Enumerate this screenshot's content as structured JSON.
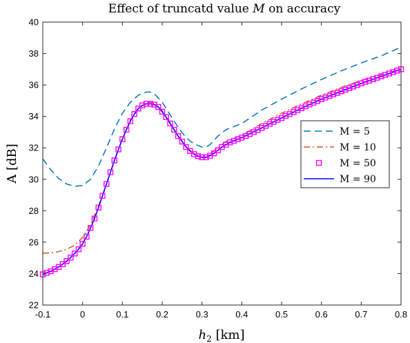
{
  "chart_data": {
    "type": "line",
    "title_prefix": "Effect of truncatd value ",
    "title_symbol": "M",
    "title_suffix": " on accuracy",
    "xlabel_symbol": "h",
    "xlabel_sub": "2",
    "xlabel_unit": " [km]",
    "ylabel": "A [dB]",
    "xlim": [
      -0.1,
      0.8
    ],
    "ylim": [
      22,
      40
    ],
    "xticks": [
      -0.1,
      0,
      0.1,
      0.2,
      0.3,
      0.4,
      0.5,
      0.6,
      0.7,
      0.8
    ],
    "xtick_labels": [
      "-0.1",
      "0",
      "0.1",
      "0.2",
      "0.3",
      "0.4",
      "0.5",
      "0.6",
      "0.7",
      "0.8"
    ],
    "yticks": [
      22,
      24,
      26,
      28,
      30,
      32,
      34,
      36,
      38,
      40
    ],
    "ytick_labels": [
      "22",
      "24",
      "26",
      "28",
      "30",
      "32",
      "34",
      "36",
      "38",
      "40"
    ],
    "grid": false,
    "legend_position": "right",
    "series": [
      {
        "name": "M = 5",
        "style": "dashed",
        "color": "#0072BD",
        "x": [
          -0.1,
          -0.08,
          -0.06,
          -0.04,
          -0.02,
          0.0,
          0.02,
          0.04,
          0.06,
          0.08,
          0.1,
          0.12,
          0.14,
          0.16,
          0.17,
          0.18,
          0.2,
          0.22,
          0.24,
          0.26,
          0.28,
          0.3,
          0.31,
          0.32,
          0.34,
          0.36,
          0.38,
          0.4,
          0.45,
          0.5,
          0.55,
          0.6,
          0.65,
          0.7,
          0.75,
          0.8
        ],
        "y": [
          31.3,
          30.6,
          30.05,
          29.7,
          29.55,
          29.6,
          30.0,
          30.85,
          32.0,
          33.2,
          34.2,
          34.9,
          35.35,
          35.55,
          35.55,
          35.45,
          34.9,
          34.1,
          33.3,
          32.65,
          32.25,
          32.05,
          32.05,
          32.2,
          32.75,
          33.15,
          33.35,
          33.55,
          34.4,
          35.1,
          35.75,
          36.35,
          36.9,
          37.4,
          37.85,
          38.4
        ]
      },
      {
        "name": "M = 10",
        "style": "dash-dot",
        "color": "#D95319",
        "x": [
          -0.1,
          -0.08,
          -0.06,
          -0.04,
          -0.02,
          0.0,
          0.02,
          0.04,
          0.06,
          0.08,
          0.1,
          0.12,
          0.14,
          0.16,
          0.17,
          0.18,
          0.2,
          0.22,
          0.24,
          0.26,
          0.28,
          0.3,
          0.31,
          0.32,
          0.34,
          0.36,
          0.38,
          0.4,
          0.45,
          0.5,
          0.55,
          0.6,
          0.65,
          0.7,
          0.75,
          0.8
        ],
        "y": [
          25.3,
          25.32,
          25.4,
          25.55,
          25.8,
          26.3,
          27.1,
          28.3,
          29.7,
          31.2,
          32.6,
          33.75,
          34.5,
          34.85,
          34.9,
          34.85,
          34.35,
          33.6,
          32.75,
          32.05,
          31.6,
          31.4,
          31.4,
          31.55,
          32.05,
          32.4,
          32.6,
          32.8,
          33.55,
          34.2,
          34.8,
          35.35,
          35.85,
          36.3,
          36.65,
          37.0
        ]
      },
      {
        "name": "M = 50",
        "style": "square-markers",
        "color": "#FF00FF",
        "x": [
          -0.1,
          -0.09,
          -0.08,
          -0.07,
          -0.06,
          -0.05,
          -0.04,
          -0.03,
          -0.02,
          -0.01,
          0.0,
          0.01,
          0.02,
          0.03,
          0.04,
          0.05,
          0.06,
          0.07,
          0.08,
          0.09,
          0.1,
          0.11,
          0.12,
          0.13,
          0.14,
          0.15,
          0.16,
          0.17,
          0.18,
          0.19,
          0.2,
          0.21,
          0.22,
          0.23,
          0.24,
          0.25,
          0.26,
          0.27,
          0.28,
          0.29,
          0.3,
          0.31,
          0.32,
          0.33,
          0.34,
          0.35,
          0.36,
          0.37,
          0.38,
          0.39,
          0.4,
          0.41,
          0.42,
          0.43,
          0.44,
          0.45,
          0.46,
          0.47,
          0.48,
          0.49,
          0.5,
          0.51,
          0.52,
          0.53,
          0.54,
          0.55,
          0.56,
          0.57,
          0.58,
          0.59,
          0.6,
          0.61,
          0.62,
          0.63,
          0.64,
          0.65,
          0.66,
          0.67,
          0.68,
          0.69,
          0.7,
          0.71,
          0.72,
          0.73,
          0.74,
          0.75,
          0.76,
          0.77,
          0.78,
          0.79,
          0.8
        ],
        "y": [
          23.95,
          24.05,
          24.15,
          24.28,
          24.42,
          24.6,
          24.8,
          25.02,
          25.28,
          25.55,
          25.9,
          26.35,
          26.9,
          27.5,
          28.2,
          28.95,
          29.7,
          30.45,
          31.2,
          31.9,
          32.55,
          33.15,
          33.7,
          34.15,
          34.5,
          34.7,
          34.8,
          34.8,
          34.75,
          34.6,
          34.3,
          33.95,
          33.55,
          33.15,
          32.75,
          32.4,
          32.05,
          31.8,
          31.6,
          31.47,
          31.4,
          31.4,
          31.5,
          31.65,
          31.85,
          32.05,
          32.2,
          32.35,
          32.45,
          32.55,
          32.65,
          32.75,
          32.88,
          33.0,
          33.13,
          33.27,
          33.4,
          33.53,
          33.66,
          33.78,
          33.9,
          34.03,
          34.15,
          34.28,
          34.4,
          34.52,
          34.64,
          34.76,
          34.87,
          34.98,
          35.1,
          35.2,
          35.3,
          35.4,
          35.5,
          35.6,
          35.7,
          35.8,
          35.9,
          36.0,
          36.1,
          36.2,
          36.28,
          36.37,
          36.46,
          36.55,
          36.64,
          36.73,
          36.82,
          36.91,
          37.0
        ]
      },
      {
        "name": "M = 90",
        "style": "solid",
        "color": "#0000FF",
        "x": [
          -0.1,
          -0.09,
          -0.08,
          -0.07,
          -0.06,
          -0.05,
          -0.04,
          -0.03,
          -0.02,
          -0.01,
          0.0,
          0.01,
          0.02,
          0.03,
          0.04,
          0.05,
          0.06,
          0.07,
          0.08,
          0.09,
          0.1,
          0.11,
          0.12,
          0.13,
          0.14,
          0.15,
          0.16,
          0.17,
          0.18,
          0.19,
          0.2,
          0.21,
          0.22,
          0.23,
          0.24,
          0.25,
          0.26,
          0.27,
          0.28,
          0.29,
          0.3,
          0.31,
          0.32,
          0.33,
          0.34,
          0.35,
          0.36,
          0.37,
          0.38,
          0.39,
          0.4,
          0.45,
          0.5,
          0.55,
          0.6,
          0.65,
          0.7,
          0.75,
          0.8
        ],
        "y": [
          23.95,
          24.05,
          24.15,
          24.28,
          24.42,
          24.6,
          24.8,
          25.02,
          25.28,
          25.55,
          25.9,
          26.35,
          26.9,
          27.5,
          28.2,
          28.95,
          29.7,
          30.45,
          31.2,
          31.9,
          32.55,
          33.15,
          33.7,
          34.15,
          34.5,
          34.7,
          34.8,
          34.8,
          34.75,
          34.6,
          34.3,
          33.95,
          33.55,
          33.15,
          32.75,
          32.4,
          32.05,
          31.8,
          31.6,
          31.47,
          31.4,
          31.4,
          31.5,
          31.65,
          31.85,
          32.05,
          32.2,
          32.35,
          32.45,
          32.55,
          32.65,
          33.27,
          33.9,
          34.52,
          35.1,
          35.6,
          36.1,
          36.55,
          37.0
        ]
      }
    ]
  }
}
